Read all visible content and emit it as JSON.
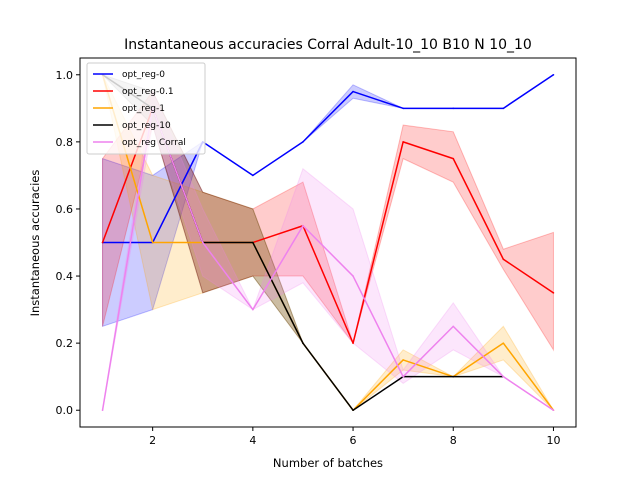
{
  "chart_data": {
    "type": "line",
    "title": "Instantaneous accuracies Corral Adult-10_10 B10 N 10_10",
    "xlabel": "Number of batches",
    "ylabel": "Instantaneous accuracies",
    "xlim": [
      0.55,
      10.45
    ],
    "ylim": [
      -0.05,
      1.05
    ],
    "xticks": [
      2,
      4,
      6,
      8,
      10
    ],
    "yticks": [
      0.0,
      0.2,
      0.4,
      0.6,
      0.8,
      1.0
    ],
    "legend_position": "upper-left",
    "grid": false,
    "series": [
      {
        "name": "opt_reg-0",
        "color": "#0000ff",
        "x": [
          1,
          2,
          3,
          4,
          5,
          6,
          7,
          8,
          9,
          10
        ],
        "y": [
          0.5,
          0.5,
          0.8,
          0.7,
          0.8,
          0.95,
          0.9,
          0.9,
          0.9,
          1.0
        ],
        "lower": [
          0.25,
          0.3,
          0.8,
          0.7,
          0.8,
          0.93,
          0.9,
          0.9,
          0.9,
          1.0
        ],
        "upper": [
          0.75,
          0.7,
          0.8,
          0.7,
          0.8,
          0.97,
          0.9,
          0.9,
          0.9,
          1.0
        ]
      },
      {
        "name": "opt_reg-0.1",
        "color": "#ff0000",
        "x": [
          1,
          2,
          3,
          4,
          5,
          6,
          7,
          8,
          9,
          10
        ],
        "y": [
          0.5,
          0.9,
          0.5,
          0.5,
          0.55,
          0.2,
          0.8,
          0.75,
          0.45,
          0.35
        ],
        "lower": [
          0.25,
          0.85,
          0.35,
          0.4,
          0.4,
          0.2,
          0.75,
          0.68,
          0.42,
          0.18
        ],
        "upper": [
          0.75,
          0.95,
          0.65,
          0.6,
          0.68,
          0.2,
          0.85,
          0.83,
          0.48,
          0.53
        ]
      },
      {
        "name": "opt_reg-1",
        "color": "#ffa500",
        "x": [
          1,
          2,
          3,
          4,
          5,
          6,
          7,
          8,
          9,
          10
        ],
        "y": [
          1.0,
          0.5,
          0.5,
          0.5,
          0.2,
          0.0,
          0.15,
          0.1,
          0.2,
          0.0
        ],
        "lower": [
          1.0,
          0.3,
          0.35,
          0.4,
          0.2,
          0.0,
          0.12,
          0.1,
          0.15,
          0.0
        ],
        "upper": [
          1.0,
          0.7,
          0.65,
          0.6,
          0.2,
          0.0,
          0.18,
          0.1,
          0.25,
          0.0
        ]
      },
      {
        "name": "opt_reg-10",
        "color": "#000000",
        "x": [
          1,
          2,
          3,
          4,
          5,
          6,
          7,
          8,
          9
        ],
        "y": [
          1.0,
          0.9,
          0.5,
          0.5,
          0.2,
          0.0,
          0.1,
          0.1,
          0.1
        ],
        "lower": [
          1.0,
          0.85,
          0.35,
          0.4,
          0.2,
          0.0,
          0.1,
          0.1,
          0.1
        ],
        "upper": [
          1.0,
          0.95,
          0.65,
          0.6,
          0.2,
          0.0,
          0.1,
          0.1,
          0.1
        ]
      },
      {
        "name": "opt_reg Corral",
        "color": "#ee82ee",
        "x": [
          1,
          2,
          3,
          4,
          5,
          6,
          7,
          8,
          9,
          10
        ],
        "y": [
          0.0,
          0.9,
          0.5,
          0.3,
          0.55,
          0.4,
          0.1,
          0.25,
          0.1,
          0.0
        ],
        "lower": [
          0.0,
          0.85,
          0.4,
          0.3,
          0.38,
          0.2,
          0.08,
          0.18,
          0.1,
          0.0
        ],
        "upper": [
          0.0,
          0.95,
          0.6,
          0.3,
          0.72,
          0.6,
          0.12,
          0.32,
          0.1,
          0.0
        ]
      }
    ]
  }
}
